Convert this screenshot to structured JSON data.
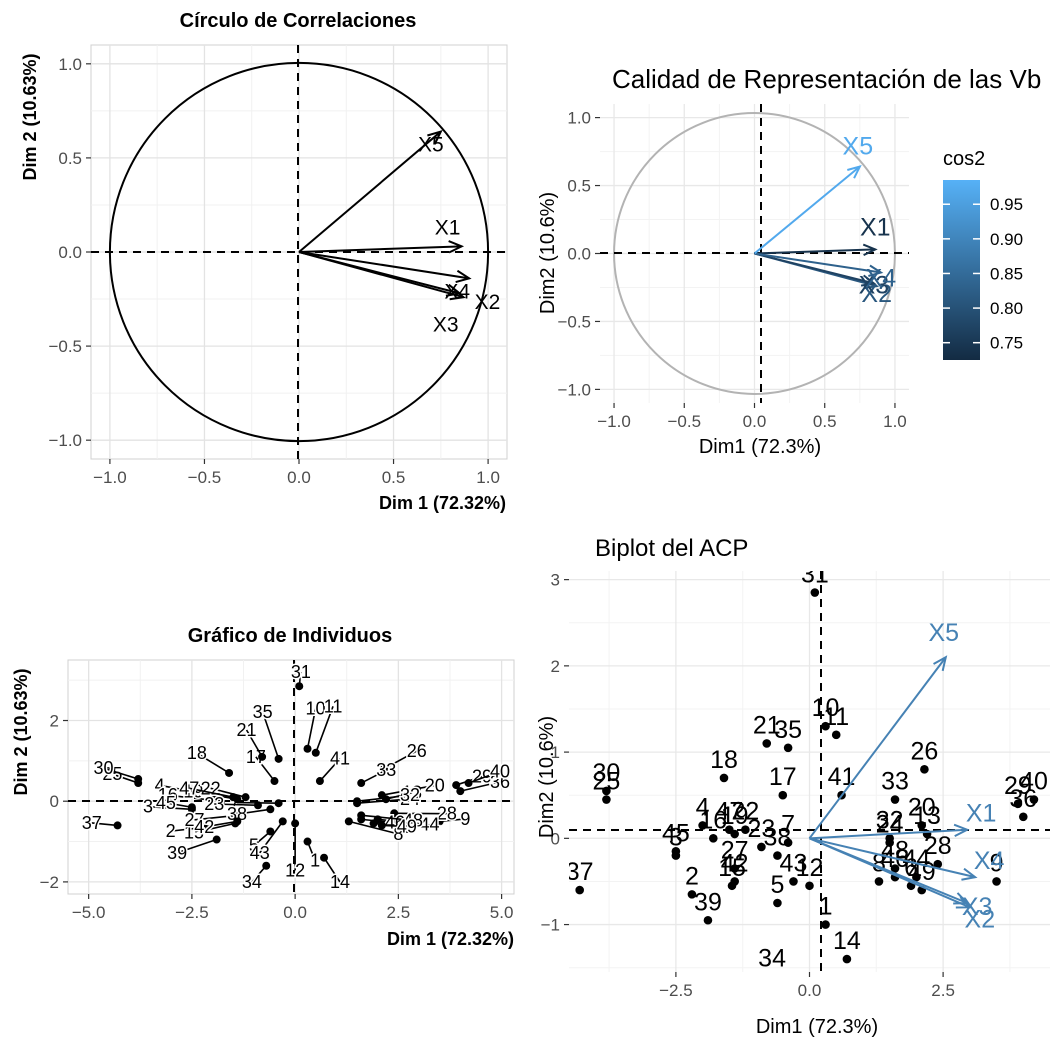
{
  "chart_data": [
    {
      "type": "scatter",
      "subtype": "correlation-circle",
      "title": "Círculo de Correlaciones",
      "xlabel": "Dim 1 (72.32%)",
      "ylabel": "Dim 2 (10.63%)",
      "xlim": [
        -1.1,
        1.1
      ],
      "ylim": [
        -1.1,
        1.1
      ],
      "xticks": [
        "−1.0",
        "−0.5",
        "0.0",
        "0.5",
        "1.0"
      ],
      "yticks": [
        "−1.0",
        "−0.5",
        "0.0",
        "0.5",
        "1.0"
      ],
      "grid": true,
      "variables": [
        {
          "name": "X1",
          "x": 0.86,
          "y": 0.03
        },
        {
          "name": "X2",
          "x": 0.87,
          "y": -0.24
        },
        {
          "name": "X3",
          "x": 0.85,
          "y": -0.22
        },
        {
          "name": "X4",
          "x": 0.9,
          "y": -0.14
        },
        {
          "name": "X5",
          "x": 0.75,
          "y": 0.64
        }
      ]
    },
    {
      "type": "scatter",
      "subtype": "correlation-circle",
      "title": "Calidad de Representación de las Vb",
      "xlabel": "Dim1 (72.3%)",
      "ylabel": "Dim2 (10.6%)",
      "xlim": [
        -1.1,
        1.1
      ],
      "ylim": [
        -1.1,
        1.1
      ],
      "xticks": [
        "−1.0",
        "−0.5",
        "0.0",
        "0.5",
        "1.0"
      ],
      "yticks": [
        "−1.0",
        "−0.5",
        "0.0",
        "0.5",
        "1.0"
      ],
      "grid": true,
      "legend": {
        "title": "cos2",
        "placement": "right",
        "min": 0.725,
        "max": 0.985,
        "ticks": [
          "0.95",
          "0.90",
          "0.85",
          "0.80",
          "0.75"
        ],
        "low_color": "#132B43",
        "high_color": "#56B1F7"
      },
      "variables": [
        {
          "name": "X1",
          "x": 0.86,
          "y": 0.03,
          "cos2": 0.74
        },
        {
          "name": "X2",
          "x": 0.87,
          "y": -0.24,
          "cos2": 0.81
        },
        {
          "name": "X3",
          "x": 0.85,
          "y": -0.22,
          "cos2": 0.77
        },
        {
          "name": "X4",
          "x": 0.9,
          "y": -0.14,
          "cos2": 0.83
        },
        {
          "name": "X5",
          "x": 0.75,
          "y": 0.64,
          "cos2": 0.97
        }
      ]
    },
    {
      "type": "scatter",
      "title": "Gráfico de Individuos",
      "xlabel": "Dim 1 (72.32%)",
      "ylabel": "Dim 2 (10.63%)",
      "xlim": [
        -5.5,
        5.3
      ],
      "ylim": [
        -2.3,
        3.5
      ],
      "xticks": [
        "−5.0",
        "−2.5",
        "0.0",
        "2.5",
        "5.0"
      ],
      "yticks": [
        "−2",
        "0",
        "2"
      ],
      "grid": true,
      "points": [
        {
          "label": "1",
          "x": 0.3,
          "y": -1.0
        },
        {
          "label": "2",
          "x": -2.2,
          "y": -0.65
        },
        {
          "label": "3",
          "x": -2.5,
          "y": -0.2
        },
        {
          "label": "4",
          "x": -2.0,
          "y": 0.15
        },
        {
          "label": "5",
          "x": -0.6,
          "y": -0.75
        },
        {
          "label": "6",
          "x": 1.9,
          "y": -0.55
        },
        {
          "label": "7",
          "x": -0.4,
          "y": -0.05
        },
        {
          "label": "8",
          "x": 1.3,
          "y": -0.5
        },
        {
          "label": "9",
          "x": 3.5,
          "y": -0.5
        },
        {
          "label": "10",
          "x": 0.3,
          "y": 1.3
        },
        {
          "label": "11",
          "x": 0.5,
          "y": 1.2
        },
        {
          "label": "12",
          "x": 0.0,
          "y": -0.55
        },
        {
          "label": "13",
          "x": 2.2,
          "y": 0.05
        },
        {
          "label": "14",
          "x": 0.7,
          "y": -1.4
        },
        {
          "label": "15",
          "x": -1.45,
          "y": -0.55
        },
        {
          "label": "16",
          "x": -1.8,
          "y": 0.0
        },
        {
          "label": "17",
          "x": -0.5,
          "y": 0.5
        },
        {
          "label": "18",
          "x": -1.6,
          "y": 0.7
        },
        {
          "label": "19",
          "x": -1.4,
          "y": 0.05
        },
        {
          "label": "20",
          "x": 2.1,
          "y": 0.15
        },
        {
          "label": "21",
          "x": -0.8,
          "y": 1.1
        },
        {
          "label": "22",
          "x": -1.2,
          "y": 0.1
        },
        {
          "label": "23",
          "x": -0.9,
          "y": -0.1
        },
        {
          "label": "24",
          "x": 1.5,
          "y": -0.05
        },
        {
          "label": "25",
          "x": -3.8,
          "y": 0.45
        },
        {
          "label": "26",
          "x": 2.15,
          "y": 0.8
        },
        {
          "label": "27",
          "x": -1.4,
          "y": -0.35
        },
        {
          "label": "28",
          "x": 2.4,
          "y": -0.3
        },
        {
          "label": "29",
          "x": 3.9,
          "y": 0.4
        },
        {
          "label": "30",
          "x": -3.8,
          "y": 0.55
        },
        {
          "label": "31",
          "x": 0.1,
          "y": 2.85
        },
        {
          "label": "32",
          "x": 1.5,
          "y": 0.0
        },
        {
          "label": "33",
          "x": 1.6,
          "y": 0.45
        },
        {
          "label": "34",
          "x": -0.7,
          "y": -1.6
        },
        {
          "label": "35",
          "x": -0.4,
          "y": 1.05
        },
        {
          "label": "36",
          "x": 4.0,
          "y": 0.25
        },
        {
          "label": "37",
          "x": -4.3,
          "y": -0.6
        },
        {
          "label": "38",
          "x": -0.6,
          "y": -0.2
        },
        {
          "label": "39",
          "x": -1.9,
          "y": -0.95
        },
        {
          "label": "40",
          "x": 4.2,
          "y": 0.45
        },
        {
          "label": "41",
          "x": 0.6,
          "y": 0.5
        },
        {
          "label": "42",
          "x": -1.4,
          "y": -0.5
        },
        {
          "label": "43",
          "x": -0.3,
          "y": -0.5
        },
        {
          "label": "44",
          "x": 2.0,
          "y": -0.45
        },
        {
          "label": "45",
          "x": -2.5,
          "y": -0.15
        },
        {
          "label": "46",
          "x": 1.6,
          "y": -0.45
        },
        {
          "label": "47",
          "x": -1.5,
          "y": 0.1
        },
        {
          "label": "48",
          "x": 1.6,
          "y": -0.35
        },
        {
          "label": "49",
          "x": 2.1,
          "y": -0.6
        }
      ]
    },
    {
      "type": "scatter",
      "subtype": "biplot",
      "title": "Biplot del ACP",
      "xlabel": "Dim1 (72.3%)",
      "ylabel": "Dim2 (10.6%)",
      "xlim": [
        -4.5,
        4.5
      ],
      "ylim": [
        -1.55,
        3.1
      ],
      "xticks": [
        "−2.5",
        "0.0",
        "2.5"
      ],
      "yticks": [
        "−1",
        "0",
        "1",
        "2",
        "3"
      ],
      "grid": true,
      "arrow_color": "#4682B4",
      "variables": [
        {
          "name": "X1",
          "x": 2.95,
          "y": 0.1
        },
        {
          "name": "X2",
          "x": 3.0,
          "y": -0.8
        },
        {
          "name": "X3",
          "x": 2.95,
          "y": -0.75
        },
        {
          "name": "X4",
          "x": 3.1,
          "y": -0.45
        },
        {
          "name": "X5",
          "x": 2.55,
          "y": 2.1
        }
      ]
    }
  ]
}
